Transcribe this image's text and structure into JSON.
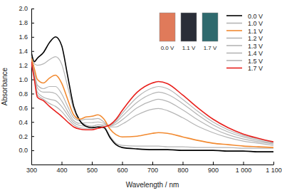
{
  "chart_data": {
    "type": "line",
    "x_label": "Wavelength / nm",
    "y_label": "Absorbance",
    "x": [
      300,
      310,
      320,
      340,
      360,
      380,
      400,
      420,
      440,
      460,
      480,
      500,
      520,
      540,
      560,
      580,
      600,
      650,
      700,
      720,
      750,
      800,
      850,
      900,
      950,
      1000,
      1050,
      1100
    ],
    "xlim": [
      300,
      1100
    ],
    "xticks": [
      300,
      400,
      500,
      600,
      700,
      800,
      900,
      {
        "value": 1000,
        "label": "1 000"
      },
      {
        "value": 1100,
        "label": "1 100"
      }
    ],
    "ylim": [
      -0.2,
      2.0
    ],
    "yticks": [
      {
        "value": 0,
        "label": "0.0"
      },
      0.2,
      0.4,
      0.6,
      0.8,
      {
        "value": 1,
        "label": "1.0"
      },
      1.2,
      1.4,
      1.6,
      1.8,
      {
        "value": 2,
        "label": "2.0"
      }
    ],
    "grid": false,
    "legend": "upper right",
    "annotations": [
      "0.0 V",
      "1.1 V",
      "1.7 V"
    ],
    "series": [
      {
        "name": "0.0 V",
        "color": "#000000",
        "values": [
          1.38,
          1.25,
          1.3,
          1.38,
          1.52,
          1.6,
          1.48,
          1.05,
          0.62,
          0.42,
          0.34,
          0.32,
          0.33,
          0.32,
          0.18,
          0.08,
          0.04,
          0.02,
          0.01,
          0.01,
          0.01,
          0,
          0,
          0,
          -0.01,
          -0.01,
          -0.02,
          -0.02
        ]
      },
      {
        "name": "1.0 V",
        "color": "#b5b5b5",
        "values": [
          1.35,
          1.22,
          1.2,
          1.22,
          1.28,
          1.32,
          1.22,
          0.9,
          0.58,
          0.42,
          0.36,
          0.34,
          0.36,
          0.34,
          0.2,
          0.1,
          0.07,
          0.06,
          0.06,
          0.06,
          0.05,
          0.05,
          0.04,
          0.04,
          0.04,
          0.03,
          0.03,
          0.03
        ]
      },
      {
        "name": "1.1 V",
        "color": "#f28a30",
        "values": [
          1.3,
          1.15,
          1.0,
          0.95,
          1.02,
          1.06,
          0.95,
          0.72,
          0.5,
          0.44,
          0.47,
          0.48,
          0.5,
          0.44,
          0.3,
          0.22,
          0.19,
          0.2,
          0.24,
          0.25,
          0.24,
          0.19,
          0.14,
          0.1,
          0.08,
          0.06,
          0.05,
          0.04
        ]
      },
      {
        "name": "1.2 V",
        "color": "#b5b5b5",
        "values": [
          1.3,
          1.1,
          0.92,
          0.87,
          0.9,
          0.9,
          0.8,
          0.62,
          0.46,
          0.42,
          0.44,
          0.44,
          0.45,
          0.4,
          0.33,
          0.33,
          0.37,
          0.5,
          0.58,
          0.59,
          0.56,
          0.46,
          0.34,
          0.25,
          0.18,
          0.13,
          0.1,
          0.07
        ]
      },
      {
        "name": "1.3 V",
        "color": "#b5b5b5",
        "values": [
          1.28,
          1.08,
          0.88,
          0.82,
          0.82,
          0.8,
          0.7,
          0.55,
          0.42,
          0.38,
          0.39,
          0.39,
          0.4,
          0.38,
          0.34,
          0.37,
          0.43,
          0.6,
          0.7,
          0.72,
          0.69,
          0.57,
          0.43,
          0.31,
          0.22,
          0.16,
          0.12,
          0.09
        ]
      },
      {
        "name": "1.4 V",
        "color": "#b5b5b5",
        "values": [
          1.26,
          1.05,
          0.82,
          0.75,
          0.72,
          0.7,
          0.62,
          0.5,
          0.39,
          0.35,
          0.34,
          0.34,
          0.36,
          0.36,
          0.35,
          0.4,
          0.48,
          0.68,
          0.8,
          0.82,
          0.79,
          0.66,
          0.5,
          0.36,
          0.26,
          0.19,
          0.14,
          0.1
        ]
      },
      {
        "name": "1.5 V",
        "color": "#b5b5b5",
        "values": [
          1.25,
          1.02,
          0.78,
          0.72,
          0.66,
          0.62,
          0.55,
          0.45,
          0.36,
          0.32,
          0.31,
          0.31,
          0.33,
          0.34,
          0.35,
          0.42,
          0.52,
          0.75,
          0.88,
          0.9,
          0.87,
          0.72,
          0.55,
          0.4,
          0.29,
          0.21,
          0.16,
          0.11
        ]
      },
      {
        "name": "1.7 V",
        "color": "#e8201c",
        "values": [
          1.25,
          1.0,
          0.75,
          0.7,
          0.62,
          0.55,
          0.48,
          0.4,
          0.33,
          0.3,
          0.29,
          0.29,
          0.31,
          0.33,
          0.36,
          0.44,
          0.56,
          0.82,
          0.95,
          0.97,
          0.94,
          0.78,
          0.6,
          0.44,
          0.32,
          0.23,
          0.17,
          0.12
        ]
      }
    ]
  }
}
